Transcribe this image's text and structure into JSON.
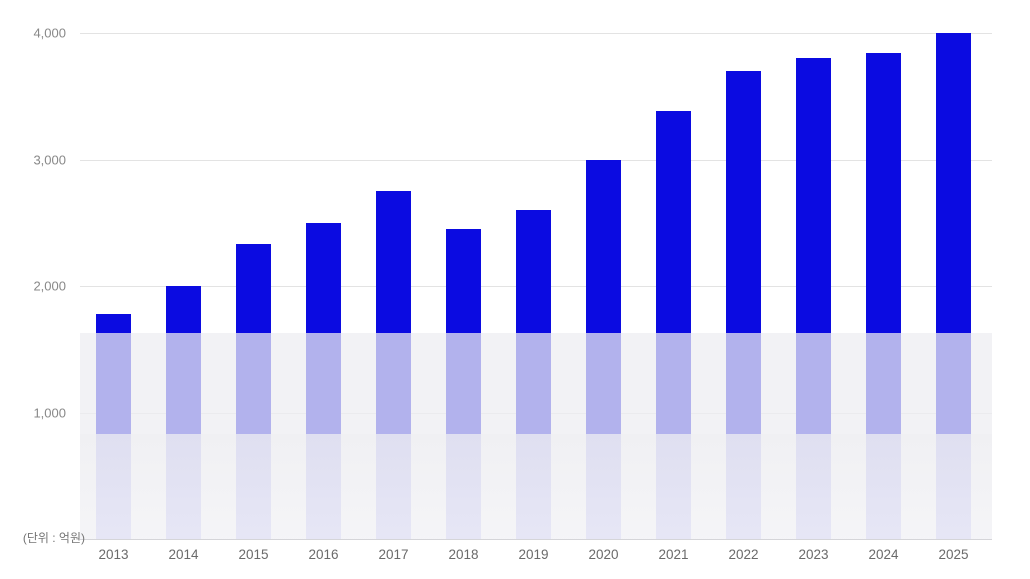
{
  "chart_data": {
    "type": "bar",
    "title": "",
    "xlabel": "",
    "ylabel": "",
    "unit_label": "(단위 : 억원)",
    "categories": [
      "2013",
      "2014",
      "2015",
      "2016",
      "2017",
      "2018",
      "2019",
      "2020",
      "2021",
      "2022",
      "2023",
      "2024",
      "2025"
    ],
    "values": [
      1780,
      2000,
      2330,
      2500,
      2750,
      2450,
      2600,
      3000,
      3380,
      3700,
      3800,
      3840,
      4000
    ],
    "ylim": [
      0,
      4000
    ],
    "yticks": [
      {
        "label": "4,000",
        "value": 4000
      },
      {
        "label": "3,000",
        "value": 3000
      },
      {
        "label": "2,000",
        "value": 2000
      },
      {
        "label": "1,000",
        "value": 1000
      }
    ],
    "grid": true,
    "legend": false,
    "layout_hints": {
      "bottom_fade_effect": "lower portion of bars covered by two translucent gray bands"
    },
    "colors": {
      "bar": "#0b0be1",
      "gridline": "#e3e3e3",
      "baseline": "#d5d5d9",
      "ytick_label": "#888888",
      "xtick_label": "#6a6a6a",
      "unit_label": "#757575",
      "background": "#ffffff"
    }
  }
}
